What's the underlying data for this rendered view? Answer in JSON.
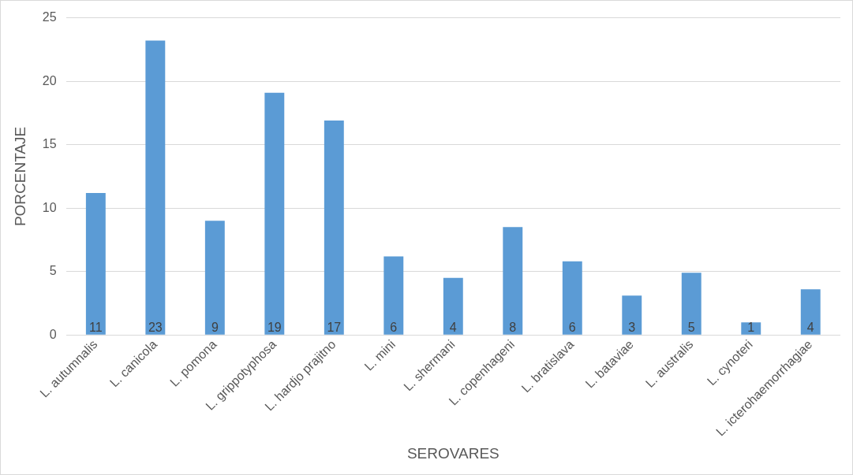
{
  "chart_data": {
    "type": "bar",
    "xlabel": "SEROVARES",
    "ylabel": "PORCENTAJE",
    "categories": [
      "L. autumnalis",
      "L. canicola",
      "L. pomona",
      "L. grippotyphosa",
      "L. hardjo prajitno",
      "L. mini",
      "L. shermani",
      "L. copenhageni",
      "L. bratislava",
      "L. bataviae",
      "L. australis",
      "L. cynoteri",
      "L. icterohaemorrhagiae"
    ],
    "values": [
      11.2,
      23.2,
      9.0,
      19.1,
      16.9,
      6.2,
      4.5,
      8.5,
      5.8,
      3.1,
      4.9,
      1.0,
      3.6
    ],
    "value_labels": [
      "11",
      "23",
      "9",
      "19",
      "17",
      "6",
      "4",
      "8",
      "6",
      "3",
      "5",
      "1",
      "4"
    ],
    "color": "#5b9bd5",
    "ylim": [
      0,
      25
    ],
    "yticks": [
      0,
      5,
      10,
      15,
      20,
      25
    ],
    "grid": "y",
    "legend": false
  }
}
